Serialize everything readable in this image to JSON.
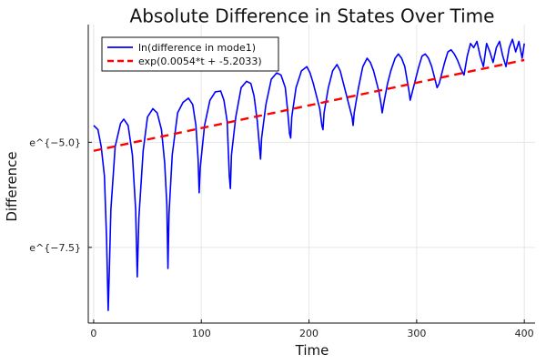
{
  "chart_data": {
    "type": "line",
    "title": "Absolute Difference in States Over Time",
    "xlabel": "Time",
    "ylabel": "Difference",
    "xlim": [
      -5,
      410
    ],
    "ylim": [
      -9.3,
      -2.2
    ],
    "x_ticks": [
      0,
      100,
      200,
      300,
      400
    ],
    "x_tick_labels": [
      "0",
      "100",
      "200",
      "300",
      "400"
    ],
    "y_ticks": [
      -7.5,
      -5.0
    ],
    "y_tick_labels": [
      "e^{−7.5}",
      "e^{−5.0}"
    ],
    "grid": true,
    "legend": {
      "position": "top-left"
    },
    "series": [
      {
        "name": "ln(difference in mode1)",
        "color": "#0000ff",
        "style": "solid",
        "x": [
          0,
          4,
          7,
          10,
          12,
          13.5,
          14.5,
          16,
          20,
          25,
          28,
          32,
          36,
          39,
          40.5,
          42,
          46,
          50,
          55,
          59,
          63,
          66,
          68,
          69,
          70,
          73,
          78,
          83,
          88,
          92,
          95,
          97,
          98,
          99,
          103,
          108,
          113,
          118,
          121,
          124,
          126,
          127,
          128,
          132,
          137,
          142,
          146,
          149,
          152,
          154,
          155,
          156,
          160,
          165,
          170,
          174,
          178,
          180,
          182,
          183,
          184,
          188,
          193,
          198,
          201,
          204,
          207,
          210,
          212,
          213,
          214,
          218,
          222,
          226,
          229,
          232,
          235,
          238,
          240,
          241,
          242,
          246,
          250,
          254,
          257,
          260,
          263,
          265,
          267,
          268,
          270,
          273,
          276,
          280,
          283,
          286,
          289,
          291,
          293,
          294,
          296,
          299,
          302,
          305,
          308,
          311,
          314,
          317,
          319,
          321,
          323,
          326,
          329,
          332,
          335,
          338,
          341,
          344,
          347,
          350,
          353,
          356,
          359,
          362,
          365,
          368,
          371,
          374,
          377,
          380,
          383,
          386,
          389,
          392,
          395,
          398,
          400
        ],
        "y": [
          -4.6,
          -4.7,
          -5.1,
          -5.8,
          -7.3,
          -9.0,
          -8.1,
          -6.6,
          -5.1,
          -4.55,
          -4.45,
          -4.6,
          -5.3,
          -6.6,
          -8.2,
          -6.8,
          -5.2,
          -4.4,
          -4.2,
          -4.3,
          -4.7,
          -5.5,
          -6.5,
          -8.0,
          -6.7,
          -5.3,
          -4.3,
          -4.05,
          -3.95,
          -4.1,
          -4.6,
          -5.4,
          -6.2,
          -5.6,
          -4.6,
          -4.0,
          -3.8,
          -3.78,
          -4.0,
          -4.5,
          -5.8,
          -6.1,
          -5.3,
          -4.4,
          -3.7,
          -3.55,
          -3.6,
          -3.9,
          -4.5,
          -5.1,
          -5.4,
          -4.9,
          -4.1,
          -3.5,
          -3.35,
          -3.4,
          -3.7,
          -4.2,
          -4.8,
          -4.9,
          -4.4,
          -3.7,
          -3.3,
          -3.2,
          -3.35,
          -3.6,
          -3.9,
          -4.2,
          -4.6,
          -4.7,
          -4.3,
          -3.7,
          -3.3,
          -3.15,
          -3.3,
          -3.6,
          -3.9,
          -4.2,
          -4.4,
          -4.6,
          -4.3,
          -3.7,
          -3.2,
          -3.0,
          -3.1,
          -3.3,
          -3.6,
          -3.8,
          -4.1,
          -4.3,
          -4.0,
          -3.6,
          -3.3,
          -3.0,
          -2.9,
          -3.0,
          -3.2,
          -3.5,
          -3.8,
          -4.0,
          -3.8,
          -3.5,
          -3.2,
          -2.95,
          -2.9,
          -3.0,
          -3.2,
          -3.5,
          -3.7,
          -3.6,
          -3.4,
          -3.1,
          -2.85,
          -2.8,
          -2.9,
          -3.05,
          -3.25,
          -3.4,
          -2.95,
          -2.65,
          -2.75,
          -2.6,
          -2.95,
          -3.2,
          -2.65,
          -2.85,
          -3.1,
          -2.75,
          -2.6,
          -2.95,
          -3.2,
          -2.75,
          -2.55,
          -2.85,
          -2.6,
          -3.0,
          -2.65
        ]
      },
      {
        "name": "exp(0.0054*t + -5.2033)",
        "color": "#ff0000",
        "style": "dashed",
        "slope": 0.0054,
        "intercept": -5.2033,
        "x": [
          0,
          400
        ],
        "y": [
          -5.2033,
          -3.0433
        ]
      }
    ]
  }
}
